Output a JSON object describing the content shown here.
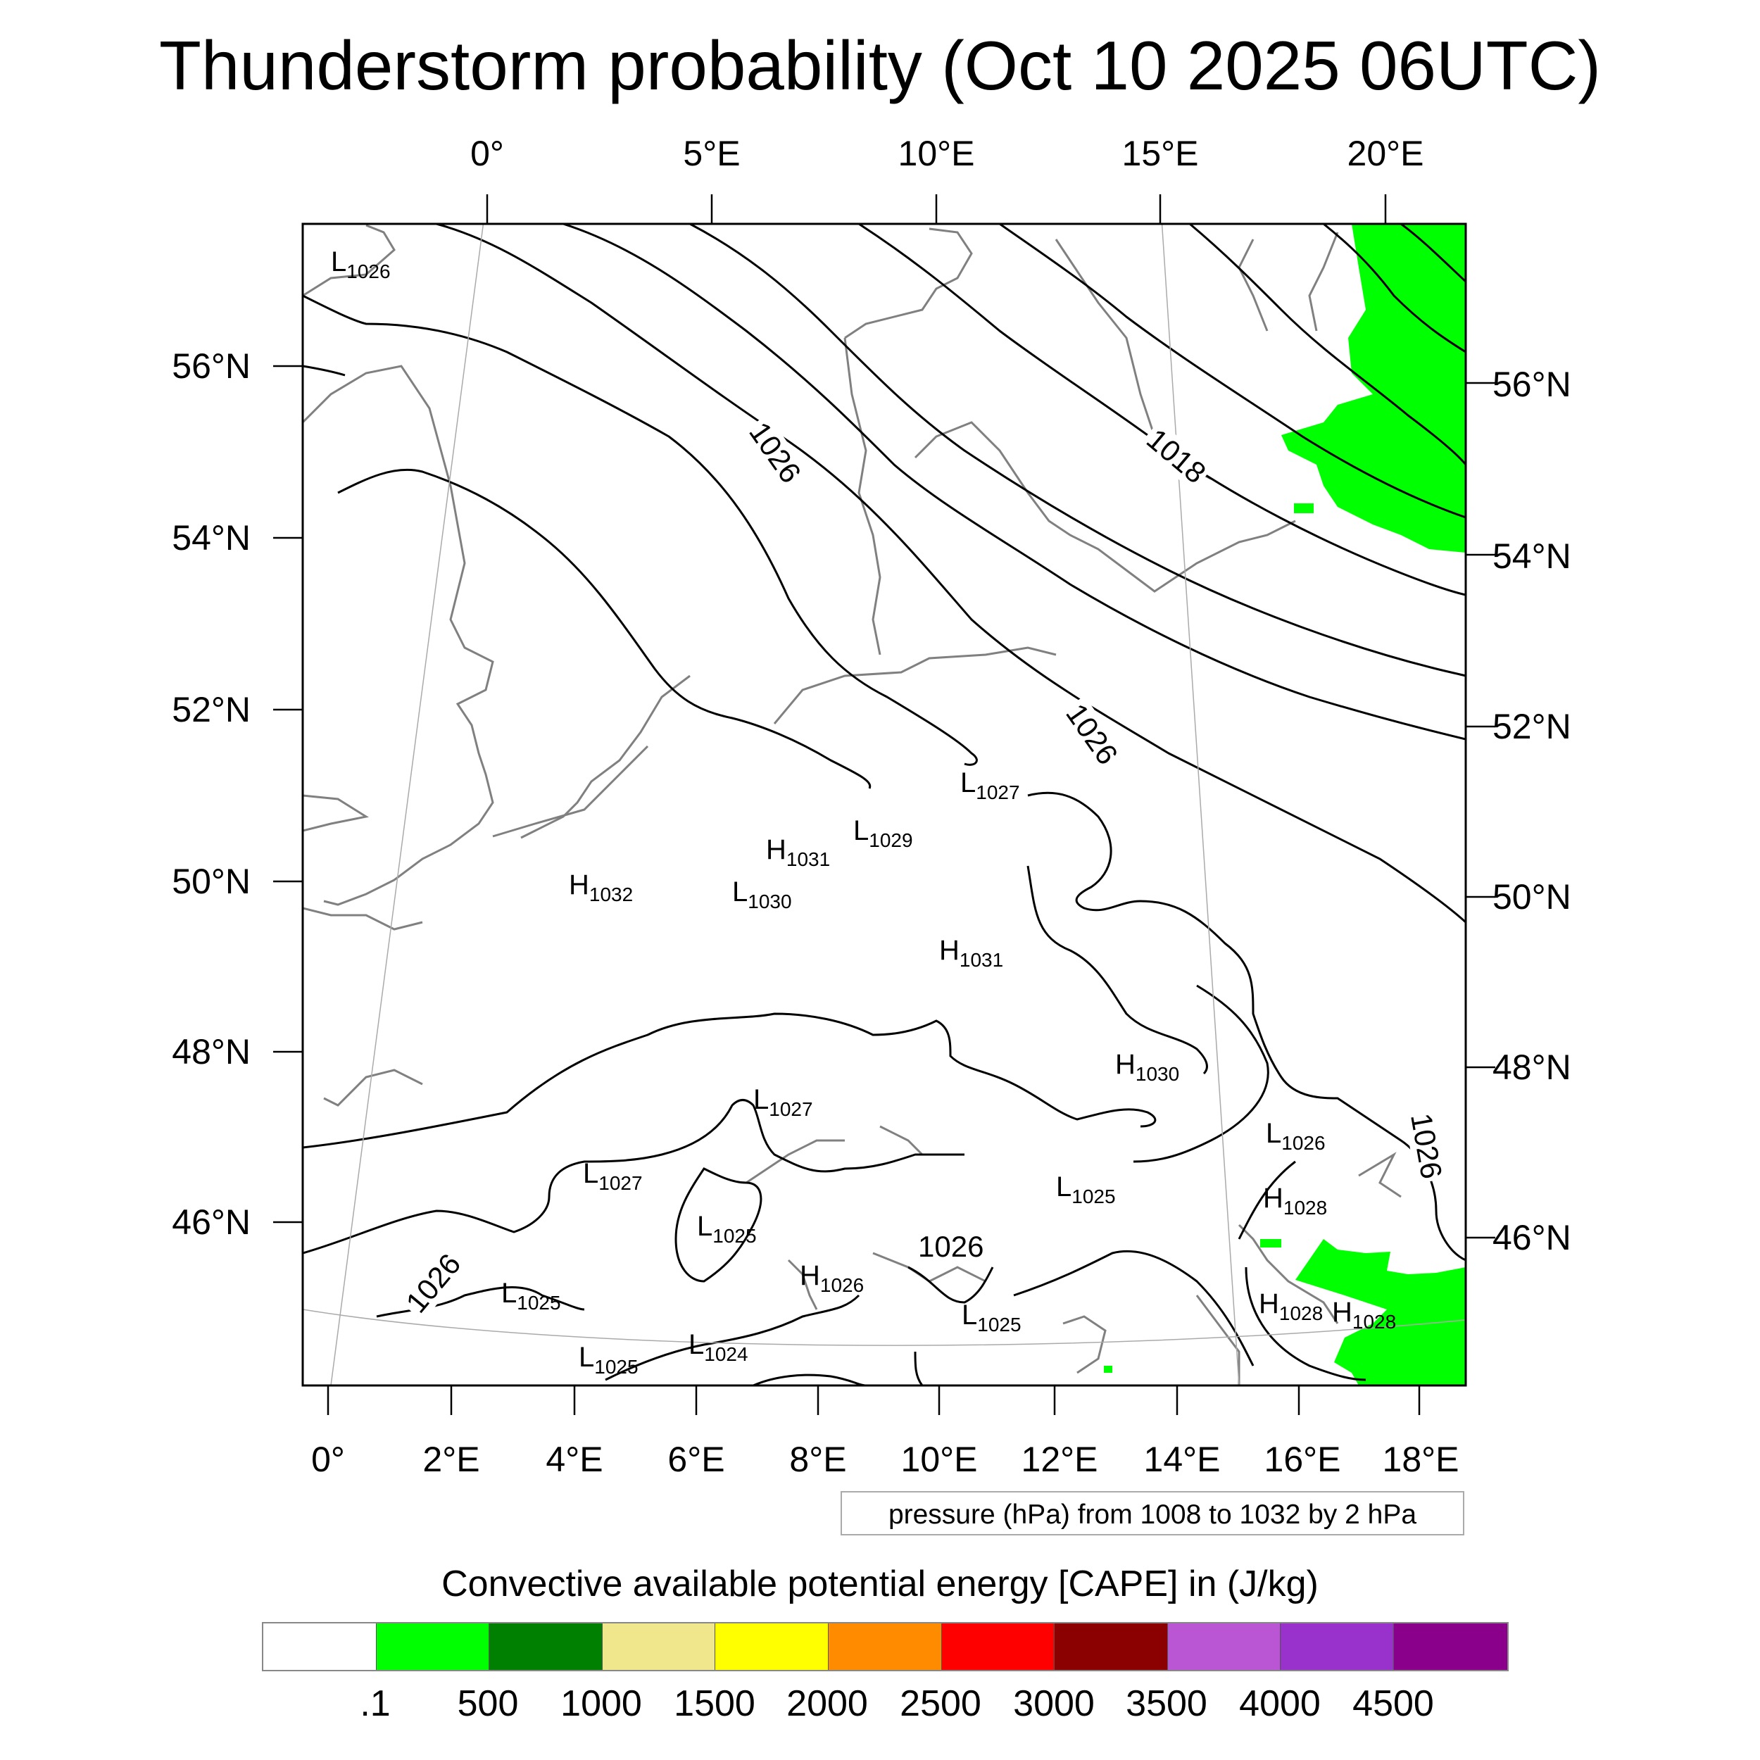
{
  "title": "Thunderstorm probability (Oct 10 2025 06UTC)",
  "axes": {
    "top_lon_labels": [
      "0°",
      "5°E",
      "10°E",
      "15°E",
      "20°E"
    ],
    "bottom_lon_labels": [
      "0°",
      "2°E",
      "4°E",
      "6°E",
      "8°E",
      "10°E",
      "12°E",
      "14°E",
      "16°E",
      "18°E"
    ],
    "left_lat_labels": [
      "56°N",
      "54°N",
      "52°N",
      "50°N",
      "48°N",
      "46°N"
    ],
    "right_lat_labels": [
      "56°N",
      "54°N",
      "52°N",
      "50°N",
      "48°N",
      "46°N"
    ]
  },
  "pressure_centers": [
    {
      "type": "L",
      "value": "1026"
    },
    {
      "type": "L",
      "value": "1027"
    },
    {
      "type": "L",
      "value": "1029"
    },
    {
      "type": "H",
      "value": "1031"
    },
    {
      "type": "H",
      "value": "1032"
    },
    {
      "type": "L",
      "value": "1030"
    },
    {
      "type": "H",
      "value": "1031"
    },
    {
      "type": "H",
      "value": "1030"
    },
    {
      "type": "L",
      "value": "1027"
    },
    {
      "type": "L",
      "value": "1026"
    },
    {
      "type": "L",
      "value": "1027"
    },
    {
      "type": "L",
      "value": "1025"
    },
    {
      "type": "H",
      "value": "1028"
    },
    {
      "type": "L",
      "value": "1025"
    },
    {
      "type": "H",
      "value": "1026"
    },
    {
      "type": "L",
      "value": "1025"
    },
    {
      "type": "L",
      "value": "1025"
    },
    {
      "type": "L",
      "value": "1024"
    },
    {
      "type": "L",
      "value": "1025"
    },
    {
      "type": "H",
      "value": "1028"
    },
    {
      "type": "H",
      "value": "1028"
    }
  ],
  "contour_labels": [
    "1026",
    "1018",
    "1026",
    "1026",
    "1026",
    "1026"
  ],
  "info_text": "pressure (hPa) from 1008 to 1032 by 2 hPa",
  "colorbar": {
    "title": "Convective available potential energy [CAPE] in (J/kg)",
    "colors": [
      "#ffffff",
      "#00ff00",
      "#008000",
      "#f0e68c",
      "#ffff00",
      "#ff8c00",
      "#ff0000",
      "#8b0000",
      "#ba55d3",
      "#9932cc",
      "#8b008b"
    ],
    "labels": [
      ".1",
      "500",
      "1000",
      "1500",
      "2000",
      "2500",
      "3000",
      "3500",
      "4000",
      "4500"
    ]
  },
  "cape_color": "#00ff00",
  "coast_color": "#808080"
}
